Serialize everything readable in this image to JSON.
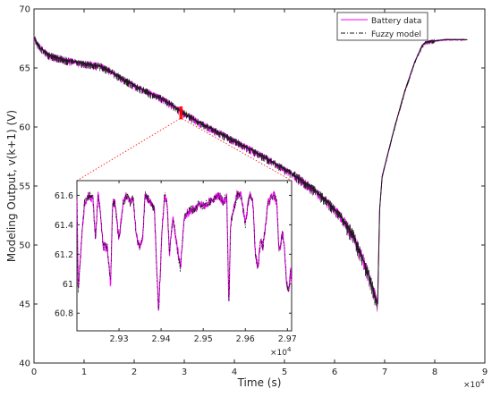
{
  "chart_data": [
    {
      "type": "line",
      "role": "main",
      "xlabel": "Time (s)",
      "ylabel": "Modeling Output, v(k+1) (V)",
      "x_exponent_label": "×10",
      "x_exponent_power": "4",
      "xlim": [
        0,
        90000
      ],
      "ylim": [
        40,
        70
      ],
      "x_ticks": [
        0,
        10000,
        20000,
        30000,
        40000,
        50000,
        60000,
        70000,
        80000,
        90000
      ],
      "x_tick_labels": [
        "0",
        "1",
        "2",
        "3",
        "4",
        "5",
        "6",
        "7",
        "8",
        "9"
      ],
      "y_ticks": [
        40,
        45,
        50,
        55,
        60,
        65,
        70
      ],
      "y_tick_labels": [
        "40",
        "45",
        "50",
        "55",
        "60",
        "65",
        "70"
      ],
      "legend_position": "top-right",
      "grid": false,
      "series": [
        {
          "name": "Battery data",
          "color": "#ff00ff",
          "line_style": "solid",
          "x": [
            0,
            1000,
            3000,
            6000,
            10000,
            13000,
            15000,
            18000,
            22000,
            26000,
            29500,
            33000,
            37000,
            41000,
            45000,
            49000,
            52000,
            55000,
            58000,
            61000,
            63500,
            65500,
            67000,
            68000,
            68600,
            69000,
            69500,
            70500,
            72000,
            74000,
            76000,
            77500,
            78300,
            80000,
            82000,
            84000,
            86500
          ],
          "y": [
            67.6,
            66.8,
            66.1,
            65.7,
            65.4,
            65.2,
            64.8,
            64.0,
            63.1,
            62.3,
            61.3,
            60.4,
            59.5,
            58.6,
            57.7,
            56.7,
            55.9,
            55.0,
            53.9,
            52.6,
            51.0,
            49.0,
            47.2,
            45.8,
            45.0,
            53.0,
            55.8,
            57.5,
            60.0,
            63.0,
            65.5,
            66.9,
            67.2,
            67.3,
            67.4,
            67.4,
            67.4
          ]
        },
        {
          "name": "Fuzzy model",
          "color": "#1a1a1a",
          "line_style": "dash-dot",
          "x": [
            0,
            1000,
            3000,
            6000,
            10000,
            13000,
            15000,
            18000,
            22000,
            26000,
            29500,
            33000,
            37000,
            41000,
            45000,
            49000,
            52000,
            55000,
            58000,
            61000,
            63500,
            65500,
            67000,
            68000,
            68600,
            69000,
            69500,
            70500,
            72000,
            74000,
            76000,
            77500,
            78300,
            80000,
            82000,
            84000,
            86500
          ],
          "y": [
            67.6,
            66.8,
            66.1,
            65.7,
            65.4,
            65.2,
            64.8,
            64.0,
            63.1,
            62.3,
            61.3,
            60.4,
            59.5,
            58.6,
            57.7,
            56.7,
            55.9,
            55.0,
            53.9,
            52.6,
            51.0,
            49.0,
            47.2,
            45.8,
            45.0,
            53.0,
            55.8,
            57.5,
            60.0,
            63.0,
            65.5,
            66.9,
            67.2,
            67.3,
            67.4,
            67.4,
            67.4
          ]
        }
      ],
      "zoom_region": {
        "x": [
          29300,
          29400
        ],
        "y": [
          60.7,
          61.7
        ]
      }
    },
    {
      "type": "line",
      "role": "inset",
      "xlim": [
        29200,
        29710
      ],
      "ylim": [
        60.68,
        61.7
      ],
      "x_ticks": [
        29300,
        29400,
        29500,
        29600,
        29700
      ],
      "x_tick_labels": [
        "2.93",
        "2.94",
        "2.95",
        "2.96",
        "2.97"
      ],
      "x_exponent_label": "×10",
      "x_exponent_power": "4",
      "y_ticks": [
        60.8,
        61.0,
        61.2,
        61.4,
        61.6
      ],
      "y_tick_labels": [
        "60.8",
        "61",
        "61.2",
        "61.4",
        "61.6"
      ],
      "series": [
        {
          "name": "Battery data",
          "color": "#ff00ff",
          "x": [
            29200,
            29203,
            29210,
            29218,
            29228,
            29238,
            29244,
            29250,
            29256,
            29262,
            29272,
            29280,
            29285,
            29290,
            29300,
            29310,
            29318,
            29326,
            29334,
            29340,
            29348,
            29356,
            29362,
            29368,
            29376,
            29384,
            29394,
            29402,
            29408,
            29414,
            29420,
            29428,
            29438,
            29446,
            29455,
            29468,
            29480,
            29492,
            29500,
            29512,
            29525,
            29538,
            29548,
            29556,
            29561,
            29565,
            29572,
            29580,
            29590,
            29600,
            29607,
            29612,
            29618,
            29624,
            29630,
            29636,
            29642,
            29648,
            29654,
            29662,
            29668,
            29675,
            29680,
            29688,
            29693,
            29698,
            29703,
            29708,
            29710
          ],
          "y": [
            61.6,
            60.95,
            61.25,
            61.55,
            61.6,
            61.58,
            61.3,
            61.6,
            61.5,
            61.25,
            61.25,
            61.0,
            61.55,
            61.55,
            61.3,
            61.55,
            61.6,
            61.55,
            61.58,
            61.35,
            61.25,
            61.3,
            61.6,
            61.58,
            61.55,
            61.5,
            60.8,
            61.35,
            61.6,
            61.55,
            61.2,
            61.45,
            61.25,
            61.1,
            61.45,
            61.5,
            61.5,
            61.55,
            61.52,
            61.55,
            61.58,
            61.6,
            61.55,
            61.6,
            60.85,
            61.4,
            61.5,
            61.6,
            61.6,
            61.4,
            61.55,
            61.6,
            61.55,
            61.2,
            61.1,
            61.3,
            61.25,
            61.4,
            61.55,
            61.58,
            61.6,
            61.55,
            61.2,
            61.35,
            61.25,
            61.0,
            60.95,
            61.1,
            61.0
          ]
        },
        {
          "name": "Fuzzy model",
          "color": "#1a1a1a",
          "x": [
            29200,
            29203,
            29210,
            29218,
            29228,
            29238,
            29244,
            29250,
            29256,
            29262,
            29272,
            29280,
            29285,
            29290,
            29300,
            29310,
            29318,
            29326,
            29334,
            29340,
            29348,
            29356,
            29362,
            29368,
            29376,
            29384,
            29394,
            29402,
            29408,
            29414,
            29420,
            29428,
            29438,
            29446,
            29455,
            29468,
            29480,
            29492,
            29500,
            29512,
            29525,
            29538,
            29548,
            29556,
            29561,
            29565,
            29572,
            29580,
            29590,
            29600,
            29607,
            29612,
            29618,
            29624,
            29630,
            29636,
            29642,
            29648,
            29654,
            29662,
            29668,
            29675,
            29680,
            29688,
            29693,
            29698,
            29703,
            29708,
            29710
          ],
          "y": [
            61.6,
            60.95,
            61.25,
            61.55,
            61.6,
            61.58,
            61.3,
            61.6,
            61.5,
            61.25,
            61.25,
            61.0,
            61.55,
            61.55,
            61.3,
            61.55,
            61.6,
            61.55,
            61.58,
            61.35,
            61.25,
            61.3,
            61.6,
            61.58,
            61.55,
            61.5,
            60.8,
            61.35,
            61.6,
            61.55,
            61.2,
            61.45,
            61.25,
            61.1,
            61.45,
            61.5,
            61.5,
            61.55,
            61.52,
            61.55,
            61.58,
            61.6,
            61.55,
            61.6,
            60.85,
            61.4,
            61.5,
            61.6,
            61.6,
            61.4,
            61.55,
            61.6,
            61.55,
            61.2,
            61.1,
            61.3,
            61.25,
            61.4,
            61.55,
            61.58,
            61.6,
            61.55,
            61.2,
            61.35,
            61.25,
            61.0,
            60.95,
            61.1,
            61.0
          ]
        }
      ]
    }
  ]
}
